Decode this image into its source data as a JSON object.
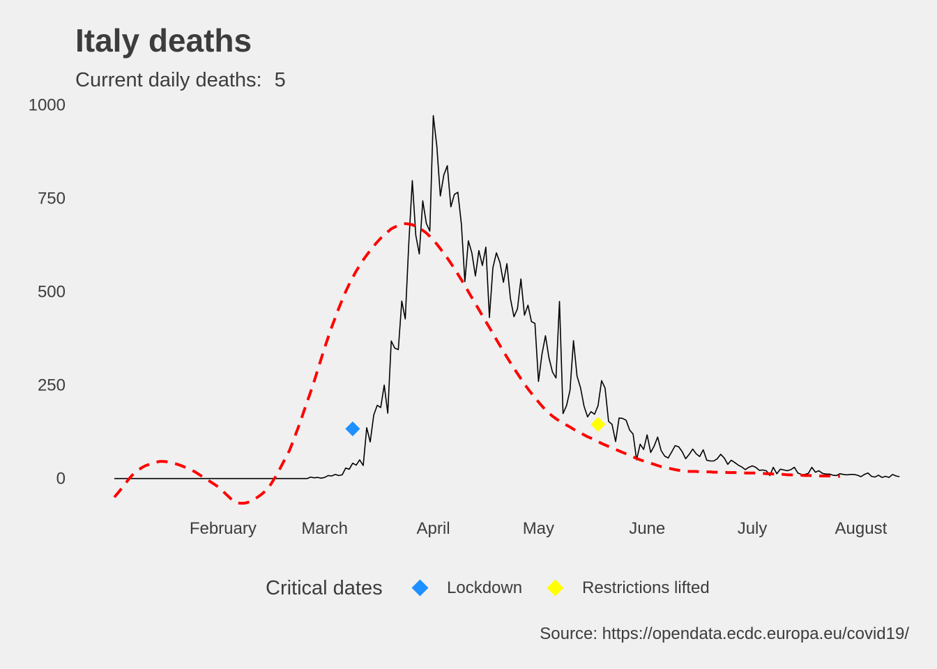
{
  "chart_data": {
    "type": "line",
    "title": "Italy deaths",
    "subtitle_label": "Current daily deaths:",
    "subtitle_value": "5",
    "caption": "Source: https://opendata.ecdc.europa.eu/covid19/",
    "x_start": "2020-01-01",
    "x_end": "2020-08-04",
    "xlim": [
      "2020-01-01",
      "2020-08-04"
    ],
    "ylim": [
      -90,
      1010
    ],
    "y_ticks": [
      0,
      250,
      500,
      750,
      1000
    ],
    "x_ticks": [
      {
        "label": "February",
        "date": "2020-02-01"
      },
      {
        "label": "March",
        "date": "2020-03-01"
      },
      {
        "label": "April",
        "date": "2020-04-01"
      },
      {
        "label": "May",
        "date": "2020-05-01"
      },
      {
        "label": "June",
        "date": "2020-06-01"
      },
      {
        "label": "July",
        "date": "2020-07-01"
      },
      {
        "label": "August",
        "date": "2020-08-01"
      }
    ],
    "grid": false,
    "legend_position": "bottom",
    "series": [
      {
        "color": "#000000",
        "style": "solid",
        "values": [
          0,
          0,
          0,
          0,
          0,
          0,
          0,
          0,
          0,
          0,
          0,
          0,
          0,
          0,
          0,
          0,
          0,
          0,
          0,
          0,
          0,
          0,
          0,
          0,
          0,
          0,
          0,
          0,
          0,
          0,
          0,
          0,
          0,
          0,
          0,
          0,
          0,
          0,
          0,
          0,
          0,
          0,
          0,
          0,
          0,
          0,
          0,
          0,
          0,
          0,
          0,
          0,
          0,
          0,
          0,
          0,
          4,
          2,
          3,
          1,
          3,
          8,
          7,
          11,
          8,
          10,
          28,
          25,
          41,
          36,
          50,
          35,
          136,
          98,
          170,
          196,
          190,
          250,
          175,
          368,
          349,
          345,
          475,
          427,
          627,
          797,
          651,
          601,
          743,
          683,
          662,
          971,
          889,
          756,
          812,
          837,
          727,
          760,
          766,
          681,
          527,
          636,
          604,
          542,
          610,
          570,
          619,
          431,
          564,
          604,
          578,
          525,
          575,
          482,
          433,
          454,
          534,
          437,
          464,
          420,
          415,
          260,
          333,
          382,
          323,
          285,
          269,
          474,
          174,
          195,
          236,
          369,
          274,
          243,
          194,
          165,
          179,
          172,
          195,
          262,
          242,
          153,
          145,
          99,
          162,
          161,
          156,
          130,
          119,
          50,
          92,
          78,
          117,
          70,
          87,
          111,
          75,
          60,
          55,
          71,
          88,
          85,
          72,
          53,
          65,
          79,
          66,
          59,
          77,
          49,
          47,
          47,
          53,
          65,
          55,
          38,
          49,
          43,
          36,
          31,
          24,
          30,
          34,
          30,
          22,
          23,
          21,
          8,
          30,
          13,
          25,
          23,
          21,
          24,
          30,
          15,
          11,
          11,
          14,
          30,
          17,
          21,
          14,
          12,
          12,
          9,
          8,
          13,
          11,
          10,
          11,
          11,
          9,
          5,
          11,
          15,
          6,
          4,
          9,
          3,
          6,
          3,
          11,
          7,
          5
        ]
      },
      {
        "color": "#ff0000",
        "style": "dashed",
        "values": [
          -50,
          -39,
          -27,
          -15,
          -3,
          8,
          17,
          24,
          30,
          35,
          38,
          42,
          44,
          46,
          46,
          45,
          43,
          41,
          38,
          35,
          31,
          27,
          23,
          18,
          12,
          6,
          0,
          -6,
          -12,
          -18,
          -25,
          -34,
          -43,
          -52,
          -60,
          -65,
          -66,
          -66,
          -64,
          -60,
          -55,
          -49,
          -42,
          -34,
          -25,
          -10,
          5,
          22,
          40,
          58,
          76,
          100,
          125,
          150,
          178,
          205,
          232,
          260,
          290,
          320,
          350,
          378,
          405,
          430,
          455,
          478,
          500,
          520,
          538,
          555,
          570,
          585,
          598,
          610,
          622,
          633,
          643,
          652,
          660,
          668,
          673,
          677,
          680,
          682,
          681,
          679,
          675,
          670,
          664,
          657,
          648,
          638,
          627,
          615,
          603,
          590,
          576,
          562,
          547,
          532,
          516,
          500,
          484,
          468,
          452,
          436,
          420,
          404,
          388,
          372,
          356,
          340,
          325,
          310,
          295,
          281,
          267,
          253,
          240,
          228,
          216,
          205,
          194,
          184,
          175,
          167,
          160,
          154,
          148,
          143,
          138,
          132,
          127,
          122,
          117,
          112,
          108,
          103,
          99,
          94,
          90,
          86,
          82,
          78,
          74,
          70,
          66,
          62,
          58,
          54,
          50,
          47,
          44,
          41,
          38,
          35,
          32,
          30,
          28,
          26,
          24,
          22,
          21,
          20,
          19,
          19,
          19,
          18,
          18,
          18,
          18,
          17,
          17,
          17,
          17,
          16,
          16,
          16,
          16,
          16,
          15,
          15,
          15,
          15,
          14,
          14,
          13,
          13,
          12,
          12,
          11,
          11,
          10,
          10,
          9,
          9,
          9,
          8,
          8,
          8,
          8,
          7,
          7,
          7,
          7,
          6,
          6,
          6
        ]
      }
    ],
    "legend": {
      "title": "Critical dates",
      "items": [
        {
          "label": "Lockdown",
          "color": "#1e90ff",
          "date": "2020-03-09",
          "value": 133
        },
        {
          "label": "Restrictions lifted",
          "color": "#ffff00",
          "date": "2020-05-18",
          "value": 145
        }
      ]
    }
  }
}
